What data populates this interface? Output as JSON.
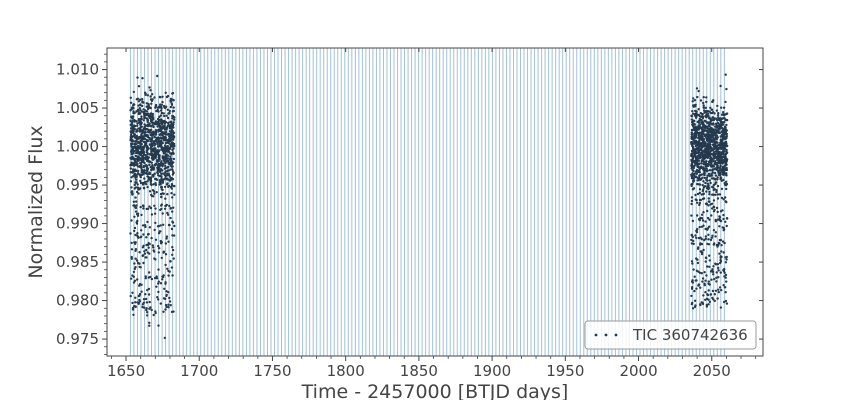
{
  "chart_data": {
    "type": "scatter",
    "title": "",
    "xlabel": "Time - 2457000 [BTJD days]",
    "ylabel": "Normalized Flux",
    "xlim": [
      1637,
      2085
    ],
    "ylim": [
      0.9728,
      1.0128
    ],
    "xticks": [
      1650,
      1700,
      1750,
      1800,
      1850,
      1900,
      1950,
      2000,
      2050
    ],
    "yticks": [
      0.975,
      0.98,
      0.985,
      0.99,
      0.995,
      1.0,
      1.005,
      1.01
    ],
    "xtick_labels": [
      "1650",
      "1700",
      "1750",
      "1800",
      "1850",
      "1900",
      "1950",
      "2000",
      "2050"
    ],
    "ytick_labels": [
      "0.975",
      "0.980",
      "0.985",
      "0.990",
      "0.995",
      "1.000",
      "1.005",
      "1.010"
    ],
    "grid": false,
    "legend_position": "bottom-right",
    "vertical_lines": {
      "description": "periodic transit markers",
      "start": 1653.0,
      "end": 2060.5,
      "period": 2.4,
      "color": "#8fb6d4"
    },
    "series": [
      {
        "name": "TIC 360742636",
        "color": "#253a4e",
        "segments": [
          {
            "x_range": [
              1653.0,
              1683.0
            ],
            "flux_center": 1.0,
            "flux_band": [
              0.9925,
              1.007
            ],
            "flux_extremes": [
              0.975,
              1.012
            ],
            "dip_depth_min": 0.978
          },
          {
            "x_range": [
              2036.0,
              2060.5
            ],
            "flux_center": 1.0,
            "flux_band": [
              0.9935,
              1.0065
            ],
            "flux_extremes": [
              0.979,
              1.0095
            ],
            "dip_depth_min": 0.979
          }
        ]
      }
    ]
  }
}
